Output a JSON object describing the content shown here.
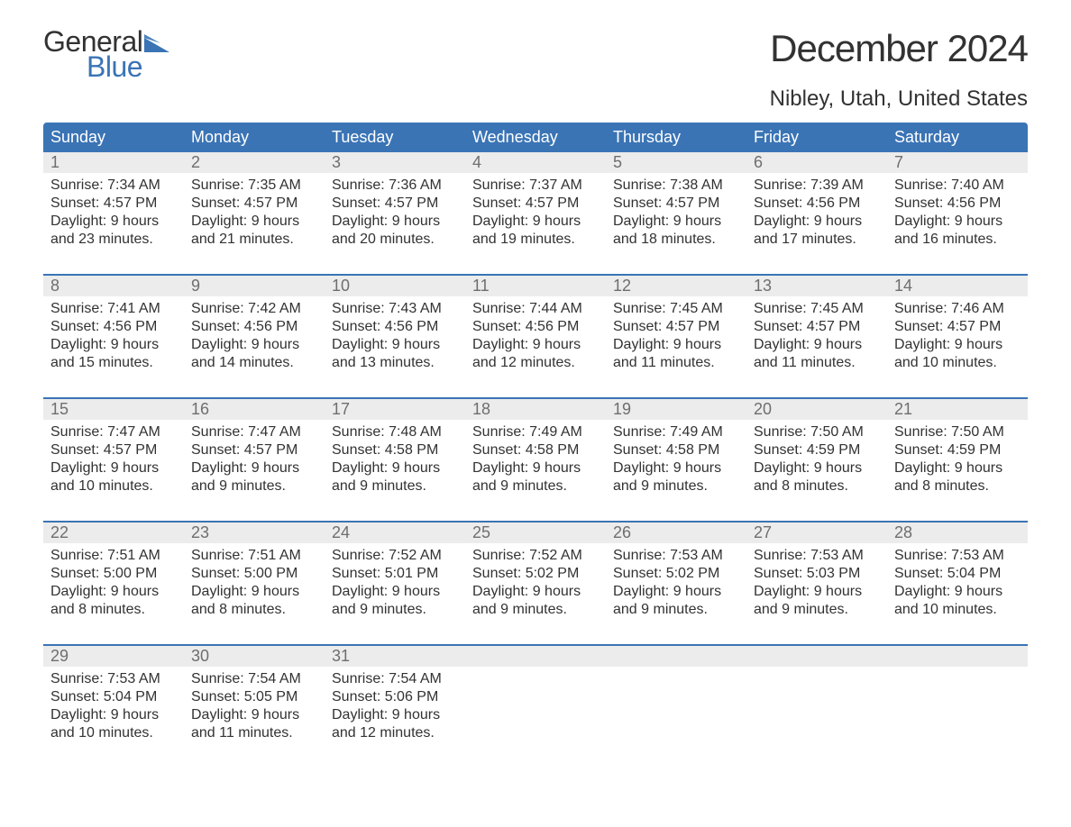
{
  "logo": {
    "text1": "General",
    "text2": "Blue",
    "flag_color": "#3a74b5"
  },
  "title": "December 2024",
  "location": "Nibley, Utah, United States",
  "colors": {
    "header_bg": "#3a74b5",
    "header_text": "#ffffff",
    "daynum_bg": "#ececec",
    "daynum_text": "#6e6e6e",
    "body_text": "#323232",
    "rule": "#3a74b5",
    "background": "#ffffff"
  },
  "week_days": [
    "Sunday",
    "Monday",
    "Tuesday",
    "Wednesday",
    "Thursday",
    "Friday",
    "Saturday"
  ],
  "weeks": [
    [
      {
        "n": "1",
        "sunrise": "7:34 AM",
        "sunset": "4:57 PM",
        "dh": "9",
        "dm": "23"
      },
      {
        "n": "2",
        "sunrise": "7:35 AM",
        "sunset": "4:57 PM",
        "dh": "9",
        "dm": "21"
      },
      {
        "n": "3",
        "sunrise": "7:36 AM",
        "sunset": "4:57 PM",
        "dh": "9",
        "dm": "20"
      },
      {
        "n": "4",
        "sunrise": "7:37 AM",
        "sunset": "4:57 PM",
        "dh": "9",
        "dm": "19"
      },
      {
        "n": "5",
        "sunrise": "7:38 AM",
        "sunset": "4:57 PM",
        "dh": "9",
        "dm": "18"
      },
      {
        "n": "6",
        "sunrise": "7:39 AM",
        "sunset": "4:56 PM",
        "dh": "9",
        "dm": "17"
      },
      {
        "n": "7",
        "sunrise": "7:40 AM",
        "sunset": "4:56 PM",
        "dh": "9",
        "dm": "16"
      }
    ],
    [
      {
        "n": "8",
        "sunrise": "7:41 AM",
        "sunset": "4:56 PM",
        "dh": "9",
        "dm": "15"
      },
      {
        "n": "9",
        "sunrise": "7:42 AM",
        "sunset": "4:56 PM",
        "dh": "9",
        "dm": "14"
      },
      {
        "n": "10",
        "sunrise": "7:43 AM",
        "sunset": "4:56 PM",
        "dh": "9",
        "dm": "13"
      },
      {
        "n": "11",
        "sunrise": "7:44 AM",
        "sunset": "4:56 PM",
        "dh": "9",
        "dm": "12"
      },
      {
        "n": "12",
        "sunrise": "7:45 AM",
        "sunset": "4:57 PM",
        "dh": "9",
        "dm": "11"
      },
      {
        "n": "13",
        "sunrise": "7:45 AM",
        "sunset": "4:57 PM",
        "dh": "9",
        "dm": "11"
      },
      {
        "n": "14",
        "sunrise": "7:46 AM",
        "sunset": "4:57 PM",
        "dh": "9",
        "dm": "10"
      }
    ],
    [
      {
        "n": "15",
        "sunrise": "7:47 AM",
        "sunset": "4:57 PM",
        "dh": "9",
        "dm": "10"
      },
      {
        "n": "16",
        "sunrise": "7:47 AM",
        "sunset": "4:57 PM",
        "dh": "9",
        "dm": "9"
      },
      {
        "n": "17",
        "sunrise": "7:48 AM",
        "sunset": "4:58 PM",
        "dh": "9",
        "dm": "9"
      },
      {
        "n": "18",
        "sunrise": "7:49 AM",
        "sunset": "4:58 PM",
        "dh": "9",
        "dm": "9"
      },
      {
        "n": "19",
        "sunrise": "7:49 AM",
        "sunset": "4:58 PM",
        "dh": "9",
        "dm": "9"
      },
      {
        "n": "20",
        "sunrise": "7:50 AM",
        "sunset": "4:59 PM",
        "dh": "9",
        "dm": "8"
      },
      {
        "n": "21",
        "sunrise": "7:50 AM",
        "sunset": "4:59 PM",
        "dh": "9",
        "dm": "8"
      }
    ],
    [
      {
        "n": "22",
        "sunrise": "7:51 AM",
        "sunset": "5:00 PM",
        "dh": "9",
        "dm": "8"
      },
      {
        "n": "23",
        "sunrise": "7:51 AM",
        "sunset": "5:00 PM",
        "dh": "9",
        "dm": "8"
      },
      {
        "n": "24",
        "sunrise": "7:52 AM",
        "sunset": "5:01 PM",
        "dh": "9",
        "dm": "9"
      },
      {
        "n": "25",
        "sunrise": "7:52 AM",
        "sunset": "5:02 PM",
        "dh": "9",
        "dm": "9"
      },
      {
        "n": "26",
        "sunrise": "7:53 AM",
        "sunset": "5:02 PM",
        "dh": "9",
        "dm": "9"
      },
      {
        "n": "27",
        "sunrise": "7:53 AM",
        "sunset": "5:03 PM",
        "dh": "9",
        "dm": "9"
      },
      {
        "n": "28",
        "sunrise": "7:53 AM",
        "sunset": "5:04 PM",
        "dh": "9",
        "dm": "10"
      }
    ],
    [
      {
        "n": "29",
        "sunrise": "7:53 AM",
        "sunset": "5:04 PM",
        "dh": "9",
        "dm": "10"
      },
      {
        "n": "30",
        "sunrise": "7:54 AM",
        "sunset": "5:05 PM",
        "dh": "9",
        "dm": "11"
      },
      {
        "n": "31",
        "sunrise": "7:54 AM",
        "sunset": "5:06 PM",
        "dh": "9",
        "dm": "12"
      },
      null,
      null,
      null,
      null
    ]
  ],
  "labels": {
    "sunrise_prefix": "Sunrise: ",
    "sunset_prefix": "Sunset: ",
    "daylight_prefix": "Daylight: ",
    "hours_word": " hours",
    "and_word": "and ",
    "minutes_word": " minutes."
  }
}
